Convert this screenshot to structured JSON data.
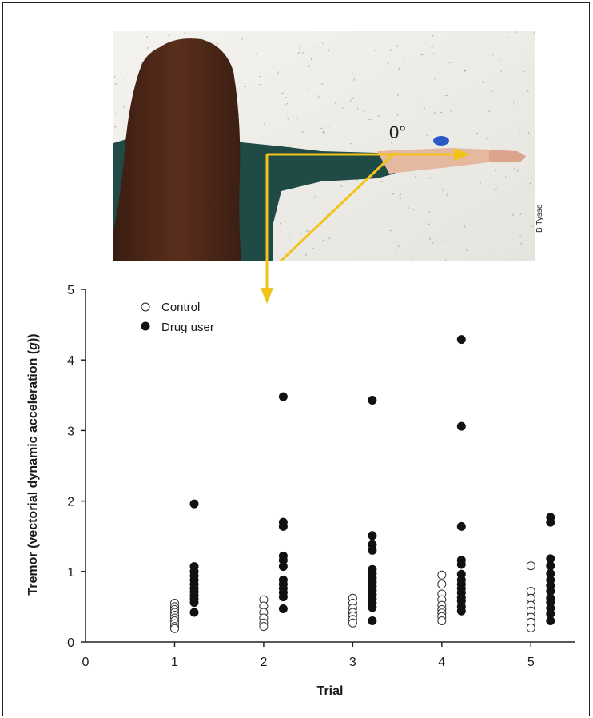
{
  "figure": {
    "angle_label": "0°",
    "credit": "B Tysse",
    "arrow_color": "#f2c319",
    "marker_fill_control": "#ffffff",
    "marker_fill_drug": "#111111"
  },
  "chart_data": {
    "type": "scatter",
    "xlabel": "Trial",
    "ylabel": "Tremor (vectorial dynamic acceleration (g))",
    "ylabel_parts": [
      "Tremor (vectorial dynamic acceleration (",
      "g",
      "))"
    ],
    "xlim": [
      0,
      5.5
    ],
    "ylim": [
      0,
      5
    ],
    "xticks": [
      0,
      1,
      2,
      3,
      4,
      5
    ],
    "yticks": [
      0,
      1,
      2,
      3,
      4,
      5
    ],
    "grid": false,
    "legend_position": "top-left",
    "series": [
      {
        "name": "Control",
        "points": [
          [
            1,
            0.55
          ],
          [
            1,
            0.5
          ],
          [
            1,
            0.46
          ],
          [
            1,
            0.42
          ],
          [
            1,
            0.38
          ],
          [
            1,
            0.34
          ],
          [
            1,
            0.3
          ],
          [
            1,
            0.26
          ],
          [
            1,
            0.22
          ],
          [
            1,
            0.19
          ],
          [
            2,
            0.6
          ],
          [
            2,
            0.51
          ],
          [
            2,
            0.42
          ],
          [
            2,
            0.34
          ],
          [
            2,
            0.27
          ],
          [
            2,
            0.22
          ],
          [
            3,
            0.62
          ],
          [
            3,
            0.55
          ],
          [
            3,
            0.48
          ],
          [
            3,
            0.42
          ],
          [
            3,
            0.37
          ],
          [
            3,
            0.32
          ],
          [
            3,
            0.27
          ],
          [
            4,
            0.95
          ],
          [
            4,
            0.82
          ],
          [
            4,
            0.68
          ],
          [
            4,
            0.6
          ],
          [
            4,
            0.52
          ],
          [
            4,
            0.46
          ],
          [
            4,
            0.41
          ],
          [
            4,
            0.36
          ],
          [
            4,
            0.3
          ],
          [
            5,
            1.08
          ],
          [
            5,
            0.72
          ],
          [
            5,
            0.62
          ],
          [
            5,
            0.52
          ],
          [
            5,
            0.44
          ],
          [
            5,
            0.35
          ],
          [
            5,
            0.28
          ],
          [
            5,
            0.2
          ]
        ]
      },
      {
        "name": "Drug user",
        "points": [
          [
            1.22,
            1.96
          ],
          [
            1.22,
            1.07
          ],
          [
            1.22,
            1.0
          ],
          [
            1.22,
            0.94
          ],
          [
            1.22,
            0.88
          ],
          [
            1.22,
            0.82
          ],
          [
            1.22,
            0.76
          ],
          [
            1.22,
            0.71
          ],
          [
            1.22,
            0.66
          ],
          [
            1.22,
            0.61
          ],
          [
            1.22,
            0.56
          ],
          [
            1.22,
            0.42
          ],
          [
            2.22,
            3.48
          ],
          [
            2.22,
            1.7
          ],
          [
            2.22,
            1.64
          ],
          [
            2.22,
            1.22
          ],
          [
            2.22,
            1.16
          ],
          [
            2.22,
            1.07
          ],
          [
            2.22,
            0.88
          ],
          [
            2.22,
            0.82
          ],
          [
            2.22,
            0.76
          ],
          [
            2.22,
            0.7
          ],
          [
            2.22,
            0.64
          ],
          [
            2.22,
            0.47
          ],
          [
            3.22,
            3.43
          ],
          [
            3.22,
            1.51
          ],
          [
            3.22,
            1.38
          ],
          [
            3.22,
            1.3
          ],
          [
            3.22,
            1.03
          ],
          [
            3.22,
            0.97
          ],
          [
            3.22,
            0.91
          ],
          [
            3.22,
            0.85
          ],
          [
            3.22,
            0.79
          ],
          [
            3.22,
            0.73
          ],
          [
            3.22,
            0.67
          ],
          [
            3.22,
            0.61
          ],
          [
            3.22,
            0.55
          ],
          [
            3.22,
            0.49
          ],
          [
            3.22,
            0.3
          ],
          [
            4.22,
            4.29
          ],
          [
            4.22,
            3.06
          ],
          [
            4.22,
            1.64
          ],
          [
            4.22,
            1.16
          ],
          [
            4.22,
            1.1
          ],
          [
            4.22,
            0.96
          ],
          [
            4.22,
            0.88
          ],
          [
            4.22,
            0.82
          ],
          [
            4.22,
            0.76
          ],
          [
            4.22,
            0.7
          ],
          [
            4.22,
            0.63
          ],
          [
            4.22,
            0.58
          ],
          [
            4.22,
            0.5
          ],
          [
            4.22,
            0.44
          ],
          [
            5.22,
            1.77
          ],
          [
            5.22,
            1.7
          ],
          [
            5.22,
            1.18
          ],
          [
            5.22,
            1.08
          ],
          [
            5.22,
            0.97
          ],
          [
            5.22,
            0.88
          ],
          [
            5.22,
            0.8
          ],
          [
            5.22,
            0.72
          ],
          [
            5.22,
            0.62
          ],
          [
            5.22,
            0.56
          ],
          [
            5.22,
            0.48
          ],
          [
            5.22,
            0.4
          ],
          [
            5.22,
            0.3
          ]
        ]
      }
    ]
  }
}
